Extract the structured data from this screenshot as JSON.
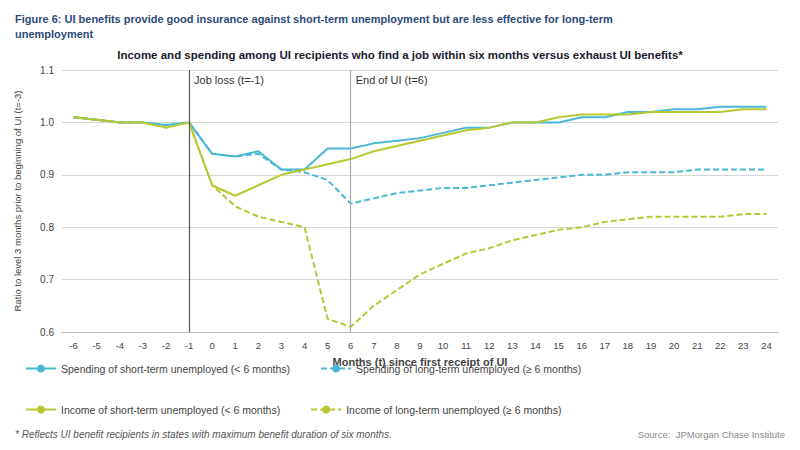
{
  "chart_data": {
    "type": "line",
    "title": "Figure 6: UI benefits provide good insurance against short-term unemployment but are less effective for long-term\nunemployment",
    "subtitle": "Income and spending among UI recipients who find a job within six months versus exhaust UI benefits*",
    "xlabel": "Months (t) since first receipt of UI",
    "ylabel": "Ratio to level 3 months prior to beginning of UI (t=-3)",
    "footnote": "* Reflects UI benefit recipients in states with maximum benefit duration of six months.",
    "source": "Source:  JPMorgan Chase Institute",
    "x": [
      -6,
      -5,
      -4,
      -3,
      -2,
      -1,
      0,
      1,
      2,
      3,
      4,
      5,
      6,
      7,
      8,
      9,
      10,
      11,
      12,
      13,
      14,
      15,
      16,
      17,
      18,
      19,
      20,
      21,
      22,
      23,
      24
    ],
    "series": [
      {
        "name": "Spending of short-term unemployed (< 6 months)",
        "color": "#4ab8d5",
        "line_style": "solid",
        "values": [
          1.01,
          1.005,
          1.0,
          1.0,
          0.995,
          1.0,
          0.94,
          0.935,
          0.945,
          0.91,
          0.91,
          0.95,
          0.95,
          0.96,
          0.965,
          0.97,
          0.98,
          0.99,
          0.99,
          1.0,
          1.0,
          1.0,
          1.01,
          1.01,
          1.02,
          1.02,
          1.025,
          1.025,
          1.03,
          1.03,
          1.03
        ]
      },
      {
        "name": "Spending of long-term unemployed (≥ 6 months)",
        "color": "#4ab8d5",
        "line_style": "dashed",
        "values": [
          1.01,
          1.005,
          1.0,
          1.0,
          0.995,
          1.0,
          0.94,
          0.935,
          0.94,
          0.91,
          0.905,
          0.89,
          0.845,
          0.855,
          0.865,
          0.87,
          0.875,
          0.875,
          0.88,
          0.885,
          0.89,
          0.895,
          0.9,
          0.9,
          0.905,
          0.905,
          0.905,
          0.91,
          0.91,
          0.91,
          0.91
        ]
      },
      {
        "name": "Income of short-term unemployed (< 6 months)",
        "color": "#b8c832",
        "line_style": "solid",
        "values": [
          1.01,
          1.005,
          1.0,
          1.0,
          0.99,
          1.0,
          0.88,
          0.86,
          0.88,
          0.9,
          0.91,
          0.92,
          0.93,
          0.945,
          0.955,
          0.965,
          0.975,
          0.985,
          0.99,
          1.0,
          1.0,
          1.01,
          1.015,
          1.015,
          1.015,
          1.02,
          1.02,
          1.02,
          1.02,
          1.025,
          1.025
        ]
      },
      {
        "name": "Income of long-term unemployed (≥ 6 months)",
        "color": "#b8c832",
        "line_style": "dashed",
        "values": [
          1.01,
          1.005,
          1.0,
          1.0,
          0.99,
          1.0,
          0.88,
          0.84,
          0.82,
          0.81,
          0.8,
          0.625,
          0.61,
          0.65,
          0.68,
          0.71,
          0.73,
          0.75,
          0.76,
          0.775,
          0.785,
          0.795,
          0.8,
          0.81,
          0.815,
          0.82,
          0.82,
          0.82,
          0.82,
          0.825,
          0.825
        ]
      }
    ],
    "annotations": [
      {
        "x": -1,
        "label": "Job loss (t=-1)"
      },
      {
        "x": 6,
        "label": "End of UI (t=6)"
      }
    ],
    "xlim": [
      -6.5,
      24.5
    ],
    "xticks": [
      -6,
      -5,
      -4,
      -3,
      -2,
      -1,
      0,
      1,
      2,
      3,
      4,
      5,
      6,
      7,
      8,
      9,
      10,
      11,
      12,
      13,
      14,
      15,
      16,
      17,
      18,
      19,
      20,
      21,
      22,
      23,
      24
    ],
    "ylim": [
      0.6,
      1.1
    ],
    "yticks": [
      0.6,
      0.7,
      0.8,
      0.9,
      {
        "value": 1.0,
        "label": "1.0"
      },
      1.1
    ],
    "grid": true,
    "legend": "lower left"
  }
}
